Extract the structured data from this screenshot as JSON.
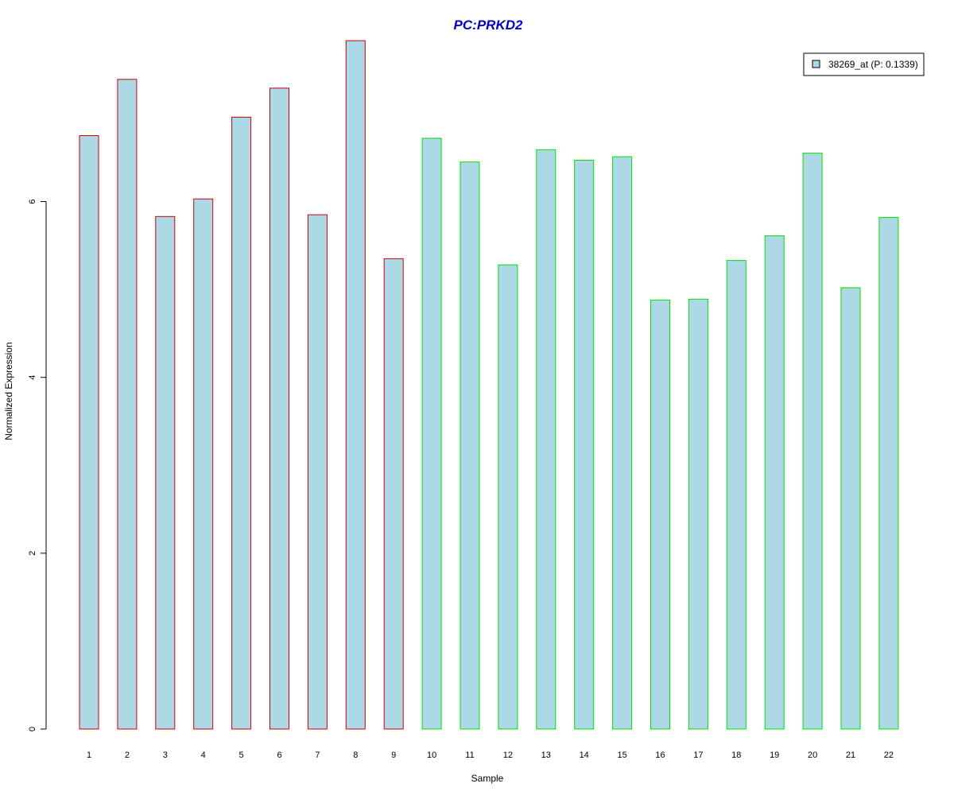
{
  "chart_data": {
    "type": "bar",
    "title": "PC:PRKD2",
    "title_color": "#0000cc",
    "xlabel": "Sample",
    "ylabel": "Normalized Expression",
    "ylim": [
      0,
      7.75
    ],
    "y_ticks": [
      0,
      2,
      4,
      6
    ],
    "grid": false,
    "legend_position": "top-right",
    "categories": [
      "1",
      "2",
      "3",
      "4",
      "5",
      "6",
      "7",
      "8",
      "9",
      "10",
      "11",
      "12",
      "13",
      "14",
      "15",
      "16",
      "17",
      "18",
      "19",
      "20",
      "21",
      "22"
    ],
    "series": [
      {
        "name": "38269_at (P: 0.1339)",
        "values": [
          6.75,
          7.39,
          5.83,
          6.03,
          6.96,
          7.29,
          5.85,
          7.83,
          5.35,
          6.72,
          6.45,
          5.28,
          6.59,
          6.47,
          6.51,
          4.88,
          4.89,
          5.33,
          5.61,
          6.55,
          5.02,
          5.82
        ],
        "fill_color": "#add8e6"
      }
    ],
    "group_colors": [
      "#cc0000",
      "#00e000"
    ],
    "bar_groups": [
      0,
      0,
      0,
      0,
      0,
      0,
      0,
      0,
      0,
      1,
      1,
      1,
      1,
      1,
      1,
      1,
      1,
      1,
      1,
      1,
      1,
      1
    ]
  }
}
